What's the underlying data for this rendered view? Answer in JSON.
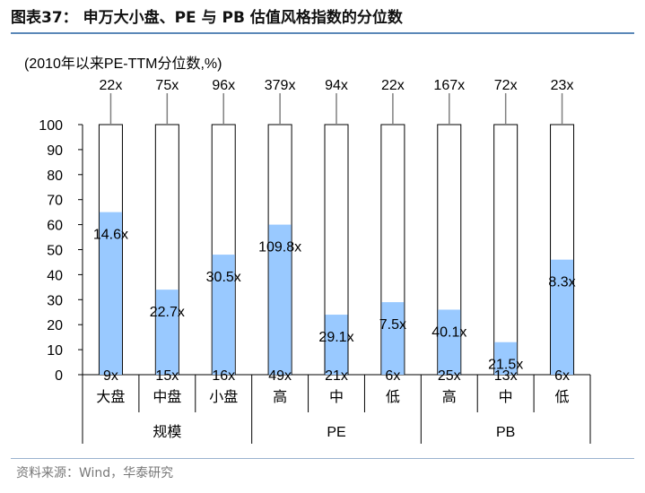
{
  "figure": {
    "title": "图表37： 申万大小盘、PE 与 PB 估值风格指数的分位数",
    "source": "资料来源：Wind，华泰研究"
  },
  "chart_data": {
    "type": "bar",
    "subtitle": "(2010年以来PE-TTM分位数,%)",
    "ylim": [
      0,
      100
    ],
    "y_ticks": [
      0,
      10,
      20,
      30,
      40,
      50,
      60,
      70,
      80,
      90,
      100
    ],
    "categories": [
      "大盘",
      "中盘",
      "小盘",
      "高",
      "中",
      "低",
      "高",
      "中",
      "低"
    ],
    "groups": [
      {
        "label": "规模",
        "span": 3
      },
      {
        "label": "PE",
        "span": 3
      },
      {
        "label": "PB",
        "span": 3
      }
    ],
    "values": [
      65,
      34,
      48,
      60,
      24,
      29,
      26,
      13,
      46
    ],
    "max_labels": [
      "22x",
      "75x",
      "96x",
      "379x",
      "94x",
      "22x",
      "167x",
      "72x",
      "23x"
    ],
    "current_labels": [
      "14.6x",
      "22.7x",
      "30.5x",
      "109.8x",
      "29.1x",
      "7.5x",
      "40.1x",
      "21.5x",
      "8.3x"
    ],
    "min_labels": [
      "9x",
      "15x",
      "16x",
      "49x",
      "21x",
      "6x",
      "25x",
      "13x",
      "6x"
    ],
    "colors": {
      "fill": "#99c9ff",
      "outline": "#000000"
    }
  }
}
